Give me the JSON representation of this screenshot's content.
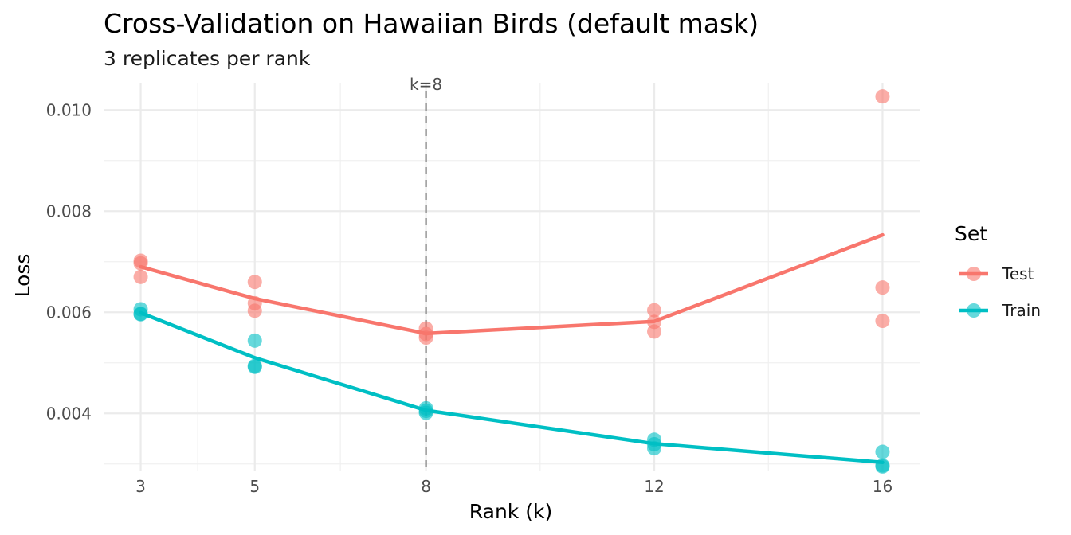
{
  "chart_data": {
    "type": "line",
    "title": "Cross-Validation on Hawaiian Birds (default mask)",
    "subtitle": "3 replicates per rank",
    "xlabel": "Rank (k)",
    "ylabel": "Loss",
    "x_ticks": [
      3,
      5,
      8,
      12,
      16
    ],
    "y_ticks": [
      0.004,
      0.006,
      0.008,
      0.01
    ],
    "y_tick_labels": [
      "0.004",
      "0.006",
      "0.008",
      "0.010"
    ],
    "xlim": [
      2.35,
      16.65
    ],
    "ylim": [
      0.00287,
      0.01054
    ],
    "grid": true,
    "legend": {
      "title": "Set",
      "placement": "right"
    },
    "annotation": {
      "text": "k=8",
      "x": 8,
      "style": "dashed vertical line"
    },
    "series": [
      {
        "name": "Test",
        "color": "#F8766D",
        "mean": [
          {
            "x": 3,
            "y": 0.0069
          },
          {
            "x": 5,
            "y": 0.00627
          },
          {
            "x": 8,
            "y": 0.00558
          },
          {
            "x": 12,
            "y": 0.00582
          },
          {
            "x": 16,
            "y": 0.00753
          }
        ],
        "replicates": [
          {
            "x": 3,
            "y": 0.00702
          },
          {
            "x": 3,
            "y": 0.00697
          },
          {
            "x": 3,
            "y": 0.0067
          },
          {
            "x": 5,
            "y": 0.0066
          },
          {
            "x": 5,
            "y": 0.00618
          },
          {
            "x": 5,
            "y": 0.00603
          },
          {
            "x": 8,
            "y": 0.00568
          },
          {
            "x": 8,
            "y": 0.00557
          },
          {
            "x": 8,
            "y": 0.0055
          },
          {
            "x": 12,
            "y": 0.00604
          },
          {
            "x": 12,
            "y": 0.00581
          },
          {
            "x": 12,
            "y": 0.00562
          },
          {
            "x": 16,
            "y": 0.01027
          },
          {
            "x": 16,
            "y": 0.00649
          },
          {
            "x": 16,
            "y": 0.00583
          }
        ]
      },
      {
        "name": "Train",
        "color": "#00BFC4",
        "mean": [
          {
            "x": 3,
            "y": 0.00599
          },
          {
            "x": 5,
            "y": 0.0051
          },
          {
            "x": 8,
            "y": 0.00406
          },
          {
            "x": 12,
            "y": 0.0034
          },
          {
            "x": 16,
            "y": 0.00303
          }
        ],
        "replicates": [
          {
            "x": 3,
            "y": 0.00606
          },
          {
            "x": 3,
            "y": 0.00597
          },
          {
            "x": 3,
            "y": 0.00596
          },
          {
            "x": 5,
            "y": 0.00544
          },
          {
            "x": 5,
            "y": 0.00494
          },
          {
            "x": 5,
            "y": 0.00492
          },
          {
            "x": 8,
            "y": 0.0041
          },
          {
            "x": 8,
            "y": 0.00405
          },
          {
            "x": 8,
            "y": 0.00401
          },
          {
            "x": 12,
            "y": 0.00348
          },
          {
            "x": 12,
            "y": 0.00339
          },
          {
            "x": 12,
            "y": 0.00331
          },
          {
            "x": 16,
            "y": 0.00324
          },
          {
            "x": 16,
            "y": 0.00297
          },
          {
            "x": 16,
            "y": 0.00295
          }
        ]
      }
    ]
  }
}
